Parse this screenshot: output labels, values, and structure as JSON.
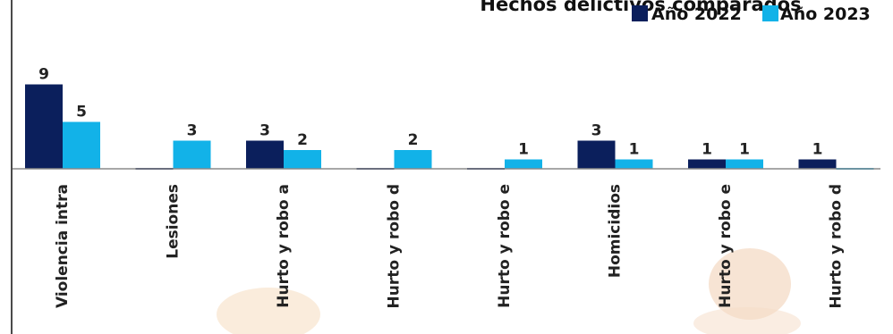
{
  "chart_data": {
    "type": "bar",
    "title": "Hechos delictivos comparados",
    "categories": [
      "Violencia intra",
      "Lesiones",
      "Hurto y robo a",
      "Hurto y robo d",
      "Hurto y robo e",
      "Homicidios",
      "Hurto y robo e",
      "Hurto y robo d"
    ],
    "series": [
      {
        "name": "Año 2022",
        "color": "#0b1f5c",
        "values": [
          9,
          0,
          3,
          0,
          0,
          3,
          1,
          1
        ]
      },
      {
        "name": "Año 2023",
        "color": "#12b2e8",
        "values": [
          5,
          3,
          2,
          2,
          1,
          1,
          1,
          0
        ]
      }
    ],
    "ylim": [
      0,
      10
    ],
    "grid": false,
    "legend_position": "top-right",
    "data_labels": [
      [
        "9",
        "",
        "3",
        "",
        "",
        "3",
        "1",
        "1"
      ],
      [
        "5",
        "3",
        "2",
        "2",
        "1",
        "1",
        "1",
        ""
      ]
    ]
  }
}
